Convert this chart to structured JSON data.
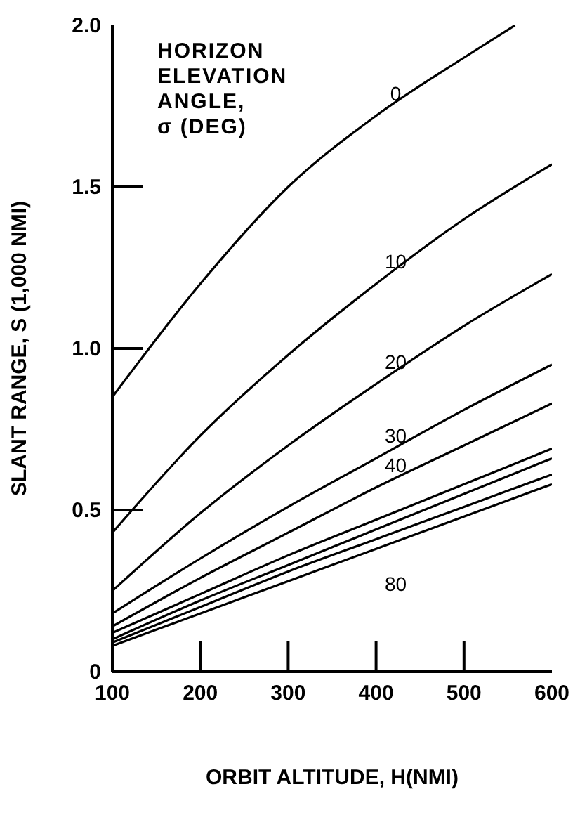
{
  "chart_data": {
    "type": "line",
    "xlabel": "ORBIT ALTITUDE, H(NMI)",
    "ylabel": "SLANT RANGE, S (1,000 NMI)",
    "legend_title": "HORIZON\nELEVATION\nANGLE,\nσ (DEG)",
    "xlim": [
      100,
      600
    ],
    "ylim": [
      0,
      2.0
    ],
    "xticks": [
      100,
      200,
      300,
      400,
      500,
      600
    ],
    "yticks": [
      0,
      {
        "value": 0.5,
        "label": "0.5"
      },
      {
        "value": 1.0,
        "label": "1.0"
      },
      {
        "value": 1.5,
        "label": "1.5"
      },
      {
        "value": 2.0,
        "label": "2.0"
      }
    ],
    "grid": false,
    "legend": false,
    "marker": "none",
    "line_style": "solid",
    "series": [
      {
        "name": "0",
        "color": "#000000",
        "x": [
          100,
          200,
          300,
          400,
          500,
          558
        ],
        "values": [
          0.85,
          1.2,
          1.5,
          1.72,
          1.9,
          2.0
        ]
      },
      {
        "name": "10",
        "color": "#000000",
        "x": [
          100,
          200,
          300,
          400,
          500,
          600
        ],
        "values": [
          0.43,
          0.73,
          0.98,
          1.2,
          1.4,
          1.57
        ]
      },
      {
        "name": "20",
        "color": "#000000",
        "x": [
          100,
          200,
          300,
          400,
          500,
          600
        ],
        "values": [
          0.25,
          0.49,
          0.7,
          0.89,
          1.07,
          1.23
        ]
      },
      {
        "name": "30",
        "color": "#000000",
        "x": [
          100,
          200,
          300,
          400,
          500,
          600
        ],
        "values": [
          0.18,
          0.35,
          0.51,
          0.66,
          0.81,
          0.95
        ]
      },
      {
        "name": "40",
        "color": "#000000",
        "x": [
          100,
          200,
          300,
          400,
          500,
          600
        ],
        "values": [
          0.14,
          0.29,
          0.43,
          0.57,
          0.7,
          0.83
        ]
      },
      {
        "color": "#000000",
        "x": [
          100,
          200,
          300,
          400,
          500,
          600
        ],
        "values": [
          0.12,
          0.24,
          0.36,
          0.47,
          0.58,
          0.69
        ]
      },
      {
        "color": "#000000",
        "x": [
          100,
          200,
          300,
          400,
          500,
          600
        ],
        "values": [
          0.1,
          0.22,
          0.33,
          0.44,
          0.55,
          0.66
        ]
      },
      {
        "color": "#000000",
        "x": [
          100,
          200,
          300,
          400,
          500,
          600
        ],
        "values": [
          0.09,
          0.2,
          0.31,
          0.41,
          0.51,
          0.61
        ]
      },
      {
        "name": "80",
        "color": "#000000",
        "x": [
          100,
          200,
          300,
          400,
          500,
          600
        ],
        "values": [
          0.08,
          0.18,
          0.28,
          0.38,
          0.48,
          0.58
        ]
      }
    ]
  }
}
